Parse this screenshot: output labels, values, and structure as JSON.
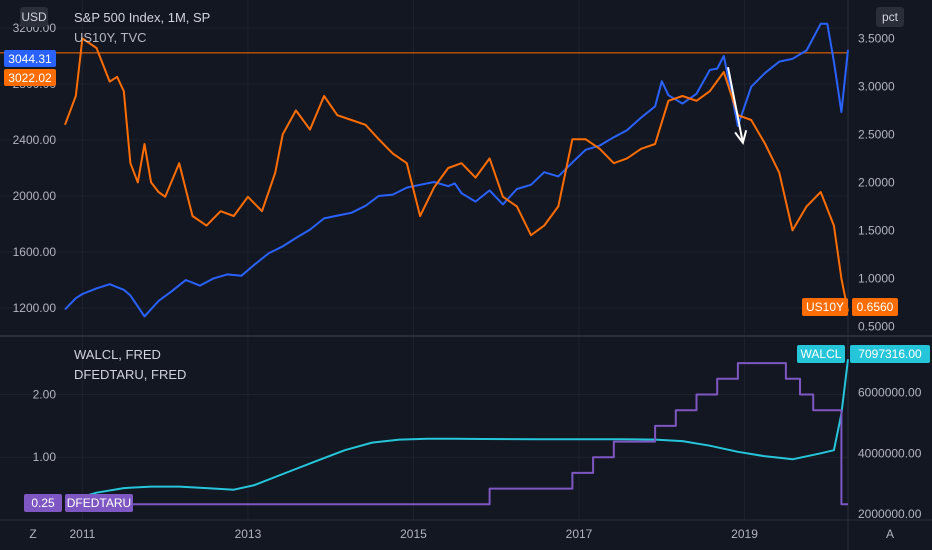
{
  "top_left_unit": "USD",
  "top_right_unit": "pct",
  "bottom_left_corner": "Z",
  "bottom_right_corner": "A",
  "colors": {
    "spx": "#2962ff",
    "us10y": "#ff6d00",
    "walcl": "#26c6da",
    "dfedtaru": "#7e57c2",
    "hline": "#ff6d00",
    "arrow": "#ffffff",
    "grid": "#1e222d",
    "separator": "#2a2e39"
  },
  "legend": {
    "main_title": "S&P 500 Index, 1M, SP",
    "us10y_title": "US10Y, TVC",
    "walcl_title": "WALCL, FRED",
    "dfedtaru_title": "DFEDTARU, FRED"
  },
  "badges": {
    "spx_value": "3044.31",
    "spx_hline_value": "3022.02",
    "us10y_name": "US10Y",
    "us10y_value": "0.6560",
    "walcl_name": "WALCL",
    "walcl_value": "7097316.00",
    "dfedtaru_value": "0.25",
    "dfedtaru_name": "DFEDTARU"
  },
  "chart_data": [
    {
      "type": "line",
      "panel": "top",
      "x_ticks": [
        "2011",
        "2013",
        "2015",
        "2017",
        "2019"
      ],
      "x_range": [
        2010.79,
        2020.25
      ],
      "hline": 3022.02,
      "left_axis": {
        "unit": "USD",
        "ticks": [
          "3200.00",
          "2800.00",
          "2400.00",
          "2000.00",
          "1600.00",
          "1200.00"
        ],
        "range": [
          1000,
          3400
        ]
      },
      "right_axis": {
        "unit": "pct",
        "ticks": [
          "3.5000",
          "3.0000",
          "2.5000",
          "2.0000",
          "1.5000",
          "1.0000",
          "0.5000"
        ],
        "range": [
          0.4,
          3.9
        ]
      },
      "series": [
        {
          "name": "S&P 500 Index, 1M, SP",
          "axis": "left",
          "x": [
            2010.79,
            2010.92,
            2011.0,
            2011.17,
            2011.33,
            2011.5,
            2011.58,
            2011.75,
            2011.92,
            2012.08,
            2012.25,
            2012.42,
            2012.58,
            2012.75,
            2012.92,
            2013.08,
            2013.25,
            2013.42,
            2013.58,
            2013.75,
            2013.92,
            2014.08,
            2014.25,
            2014.42,
            2014.58,
            2014.75,
            2014.92,
            2015.08,
            2015.25,
            2015.42,
            2015.5,
            2015.58,
            2015.75,
            2015.92,
            2016.08,
            2016.25,
            2016.42,
            2016.58,
            2016.75,
            2016.92,
            2017.08,
            2017.25,
            2017.42,
            2017.58,
            2017.75,
            2017.92,
            2018.0,
            2018.08,
            2018.25,
            2018.42,
            2018.58,
            2018.67,
            2018.75,
            2018.92,
            2019.08,
            2019.25,
            2019.42,
            2019.58,
            2019.75,
            2019.92,
            2020.0,
            2020.08,
            2020.17,
            2020.25
          ],
          "y": [
            1190,
            1270,
            1300,
            1340,
            1370,
            1330,
            1290,
            1140,
            1250,
            1320,
            1400,
            1360,
            1410,
            1440,
            1430,
            1510,
            1590,
            1640,
            1700,
            1760,
            1840,
            1860,
            1880,
            1930,
            2000,
            2010,
            2060,
            2080,
            2100,
            2070,
            2090,
            2020,
            1960,
            2040,
            1940,
            2050,
            2080,
            2170,
            2140,
            2240,
            2330,
            2360,
            2420,
            2470,
            2560,
            2640,
            2820,
            2720,
            2660,
            2730,
            2900,
            2910,
            3000,
            2500,
            2780,
            2880,
            2960,
            2980,
            3040,
            3230,
            3230,
            2960,
            2600,
            3044.31
          ]
        },
        {
          "name": "US10Y, TVC",
          "axis": "right",
          "x": [
            2010.79,
            2010.92,
            2011.0,
            2011.17,
            2011.33,
            2011.42,
            2011.5,
            2011.58,
            2011.67,
            2011.75,
            2011.83,
            2011.92,
            2012.0,
            2012.17,
            2012.33,
            2012.5,
            2012.67,
            2012.83,
            2013.0,
            2013.17,
            2013.33,
            2013.42,
            2013.58,
            2013.75,
            2013.92,
            2014.08,
            2014.25,
            2014.42,
            2014.58,
            2014.75,
            2014.92,
            2015.08,
            2015.25,
            2015.42,
            2015.58,
            2015.75,
            2015.92,
            2016.08,
            2016.25,
            2016.42,
            2016.58,
            2016.75,
            2016.92,
            2017.08,
            2017.25,
            2017.42,
            2017.58,
            2017.75,
            2017.92,
            2018.08,
            2018.25,
            2018.42,
            2018.58,
            2018.75,
            2018.92,
            2019.08,
            2019.25,
            2019.42,
            2019.58,
            2019.75,
            2019.92,
            2020.08,
            2020.17,
            2020.25
          ],
          "y": [
            2.6,
            2.9,
            3.5,
            3.4,
            3.05,
            3.1,
            2.95,
            2.2,
            2.0,
            2.4,
            2.0,
            1.9,
            1.85,
            2.2,
            1.65,
            1.55,
            1.7,
            1.65,
            1.85,
            1.7,
            2.1,
            2.5,
            2.75,
            2.55,
            2.9,
            2.7,
            2.65,
            2.6,
            2.45,
            2.3,
            2.2,
            1.65,
            1.95,
            2.15,
            2.2,
            2.05,
            2.25,
            1.85,
            1.75,
            1.45,
            1.55,
            1.75,
            2.45,
            2.45,
            2.35,
            2.2,
            2.25,
            2.35,
            2.4,
            2.85,
            2.9,
            2.85,
            2.95,
            3.15,
            2.7,
            2.65,
            2.4,
            2.1,
            1.5,
            1.75,
            1.9,
            1.55,
            1.0,
            0.656
          ]
        }
      ],
      "annotation": {
        "type": "arrow",
        "from": [
          2018.8,
          2920
        ],
        "to": [
          2018.98,
          2380
        ]
      }
    },
    {
      "type": "line",
      "panel": "bottom",
      "left_axis": {
        "ticks": [
          "2.00",
          "1.00"
        ],
        "range": [
          0,
          2.9
        ]
      },
      "right_axis": {
        "ticks": [
          "6000000.00",
          "4000000.00",
          "2000000.00"
        ],
        "range": [
          1800000,
          7800000
        ]
      },
      "series": [
        {
          "name": "WALCL, FRED",
          "axis": "right",
          "x": [
            2010.79,
            2011.17,
            2011.5,
            2011.83,
            2012.17,
            2012.5,
            2012.83,
            2013.08,
            2013.5,
            2013.83,
            2014.17,
            2014.5,
            2014.83,
            2015.17,
            2015.5,
            2015.83,
            2016.5,
            2017.0,
            2017.5,
            2017.92,
            2018.25,
            2018.58,
            2018.92,
            2019.25,
            2019.42,
            2019.58,
            2019.75,
            2019.92,
            2020.08,
            2020.17,
            2020.25
          ],
          "y": [
            2400000,
            2700000,
            2850000,
            2900000,
            2900000,
            2850000,
            2800000,
            2950000,
            3400000,
            3750000,
            4100000,
            4350000,
            4450000,
            4480000,
            4480000,
            4470000,
            4460000,
            4460000,
            4460000,
            4450000,
            4400000,
            4250000,
            4050000,
            3900000,
            3850000,
            3800000,
            3900000,
            4000000,
            4100000,
            5300000,
            7097316
          ]
        },
        {
          "name": "DFEDTARU, FRED",
          "axis": "left",
          "x": [
            2010.79,
            2015.92,
            2015.92,
            2016.92,
            2016.92,
            2017.17,
            2017.17,
            2017.42,
            2017.42,
            2017.92,
            2017.92,
            2018.17,
            2018.17,
            2018.42,
            2018.42,
            2018.67,
            2018.67,
            2018.92,
            2018.92,
            2019.5,
            2019.5,
            2019.67,
            2019.67,
            2019.83,
            2019.83,
            2020.17,
            2020.17,
            2020.25
          ],
          "y": [
            0.25,
            0.25,
            0.5,
            0.5,
            0.75,
            0.75,
            1.0,
            1.0,
            1.25,
            1.25,
            1.5,
            1.5,
            1.75,
            1.75,
            2.0,
            2.0,
            2.25,
            2.25,
            2.5,
            2.5,
            2.25,
            2.25,
            2.0,
            2.0,
            1.75,
            1.75,
            0.25,
            0.25
          ]
        }
      ]
    }
  ]
}
